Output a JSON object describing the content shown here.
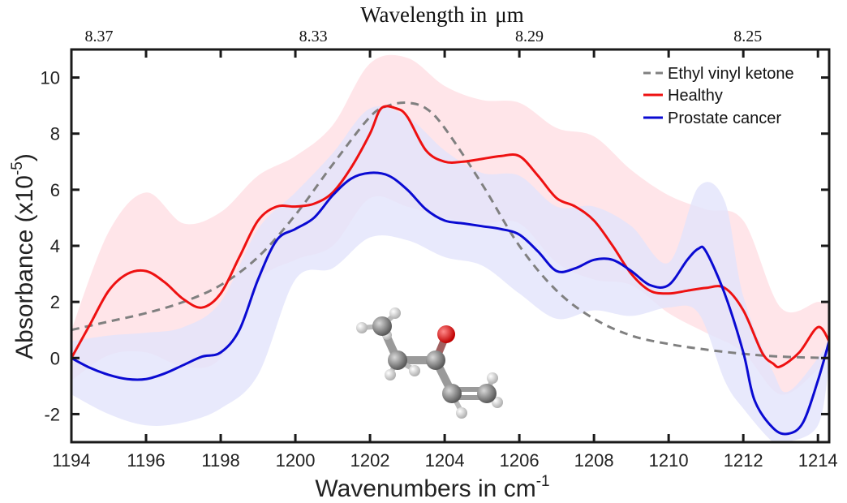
{
  "chart_data": {
    "type": "line",
    "xlabel": "Wavenumbers in cm",
    "xlabel_sup": "-1",
    "ylabel": "Absorbance (x10",
    "ylabel_sup": "-5",
    "ylabel_close": ")",
    "top_axis_label": "Wavelength in",
    "top_axis_unit": "μm",
    "xlim": [
      1194,
      1214.3
    ],
    "ylim": [
      -3,
      11
    ],
    "x_ticks": [
      1194,
      1196,
      1198,
      1200,
      1202,
      1204,
      1206,
      1208,
      1210,
      1212,
      1214
    ],
    "x_tick_labels": [
      "1194",
      "1196",
      "1198",
      "1200",
      "1202",
      "1204",
      "1206",
      "1208",
      "1210",
      "1212",
      "1214"
    ],
    "y_ticks": [
      -2,
      0,
      2,
      4,
      6,
      8,
      10
    ],
    "y_tick_labels": [
      "-2",
      "0",
      "2",
      "4",
      "6",
      "8",
      "10"
    ],
    "top_ticks": [
      {
        "label": "8.37",
        "wavenumber": 1194.74
      },
      {
        "label": "8.33",
        "wavenumber": 1200.48
      },
      {
        "label": "8.29",
        "wavenumber": 1206.27
      },
      {
        "label": "8.25",
        "wavenumber": 1212.12
      }
    ],
    "legend_position": "top-right",
    "series": [
      {
        "name": "Ethyl vinyl ketone",
        "color": "#808080",
        "style": "dashed",
        "x": [
          1194,
          1195,
          1196,
          1197,
          1198,
          1199,
          1200,
          1201,
          1202,
          1202.5,
          1203,
          1203.5,
          1204,
          1205,
          1206,
          1207,
          1208,
          1209,
          1210,
          1211,
          1212,
          1213,
          1214.3
        ],
        "values": [
          1.0,
          1.3,
          1.6,
          2.0,
          2.6,
          3.6,
          5.1,
          6.9,
          8.6,
          9.0,
          9.1,
          8.9,
          8.2,
          6.2,
          4.0,
          2.4,
          1.4,
          0.8,
          0.5,
          0.3,
          0.15,
          0.05,
          0.0
        ]
      },
      {
        "name": "Healthy",
        "color": "#ee1111",
        "style": "solid",
        "x": [
          1194,
          1194.5,
          1195,
          1195.5,
          1196,
          1196.5,
          1197,
          1197.5,
          1198,
          1198.5,
          1199,
          1199.5,
          1200,
          1200.5,
          1201,
          1201.5,
          1202,
          1202.3,
          1202.7,
          1203,
          1203.5,
          1204,
          1204.5,
          1205,
          1205.5,
          1206,
          1206.5,
          1207,
          1207.5,
          1208,
          1208.5,
          1209,
          1209.5,
          1210,
          1210.5,
          1211,
          1211.5,
          1212,
          1212.5,
          1212.8,
          1213,
          1213.5,
          1214,
          1214.3
        ],
        "values": [
          0.0,
          1.2,
          2.4,
          3.0,
          3.1,
          2.7,
          2.1,
          1.8,
          2.3,
          3.6,
          4.9,
          5.4,
          5.4,
          5.5,
          5.9,
          6.8,
          8.0,
          8.9,
          8.9,
          8.6,
          7.4,
          7.0,
          7.0,
          7.1,
          7.2,
          7.2,
          6.5,
          5.7,
          5.4,
          4.9,
          4.0,
          3.0,
          2.4,
          2.3,
          2.4,
          2.5,
          2.5,
          1.7,
          0.2,
          -0.2,
          -0.3,
          0.2,
          1.1,
          0.6
        ]
      },
      {
        "name": "Prostate cancer",
        "color": "#0a0ad2",
        "style": "solid",
        "x": [
          1194,
          1194.5,
          1195,
          1195.5,
          1196,
          1196.5,
          1197,
          1197.5,
          1198,
          1198.5,
          1199,
          1199.5,
          1200,
          1200.5,
          1201,
          1201.5,
          1202,
          1202.5,
          1203,
          1203.5,
          1204,
          1204.5,
          1205,
          1205.5,
          1206,
          1206.5,
          1207,
          1207.5,
          1208,
          1208.5,
          1209,
          1209.5,
          1210,
          1210.5,
          1210.8,
          1211,
          1211.5,
          1212,
          1212.3,
          1212.8,
          1213.2,
          1213.6,
          1214,
          1214.3
        ],
        "values": [
          0.0,
          -0.35,
          -0.6,
          -0.75,
          -0.75,
          -0.55,
          -0.25,
          0.05,
          0.2,
          1.0,
          2.8,
          4.2,
          4.6,
          5.0,
          5.8,
          6.4,
          6.6,
          6.5,
          6.0,
          5.3,
          4.9,
          4.8,
          4.7,
          4.6,
          4.4,
          3.8,
          3.1,
          3.2,
          3.5,
          3.5,
          3.1,
          2.6,
          2.6,
          3.5,
          3.9,
          3.8,
          2.3,
          0.2,
          -1.5,
          -2.5,
          -2.7,
          -2.3,
          -0.8,
          0.6
        ]
      }
    ],
    "bands": [
      {
        "name": "Healthy spread",
        "color": "#ffdfe4",
        "x": [
          1194,
          1195,
          1196,
          1197,
          1198,
          1199,
          1200,
          1201,
          1202,
          1203,
          1204,
          1205,
          1206,
          1207,
          1208,
          1209,
          1210,
          1211,
          1212,
          1213,
          1214,
          1214.3
        ],
        "upper": [
          1.0,
          4.5,
          5.9,
          4.8,
          5.2,
          6.5,
          7.2,
          8.3,
          10.5,
          10.7,
          9.7,
          9.2,
          9.1,
          8.2,
          7.9,
          6.7,
          5.8,
          5.3,
          4.9,
          1.8,
          2.0,
          1.9
        ],
        "lower": [
          -0.8,
          0.1,
          0.2,
          -0.3,
          0.0,
          2.7,
          3.5,
          4.0,
          5.7,
          5.4,
          5.0,
          4.8,
          4.8,
          3.4,
          2.8,
          2.6,
          1.6,
          0.9,
          0.2,
          -1.3,
          -0.4,
          0.1
        ]
      },
      {
        "name": "Prostate cancer spread",
        "color": "#e2e4fb",
        "x": [
          1194,
          1195,
          1196,
          1197,
          1198,
          1199,
          1200,
          1201,
          1202,
          1203,
          1204,
          1205,
          1206,
          1207,
          1208,
          1209,
          1210,
          1210.8,
          1211.5,
          1212,
          1212.8,
          1213.2,
          1214,
          1214.3
        ],
        "upper": [
          0.6,
          0.8,
          0.9,
          1.1,
          2.0,
          4.6,
          5.9,
          7.3,
          8.9,
          8.6,
          7.4,
          6.6,
          6.5,
          5.4,
          5.4,
          4.7,
          3.4,
          6.1,
          5.6,
          2.2,
          -0.5,
          -1.2,
          0.0,
          0.7
        ],
        "lower": [
          -1.3,
          -2.0,
          -2.4,
          -2.3,
          -1.8,
          -0.6,
          2.8,
          3.2,
          4.3,
          4.2,
          3.6,
          3.3,
          2.3,
          1.4,
          1.7,
          1.5,
          1.8,
          1.6,
          -0.8,
          -1.8,
          -3.0,
          -3.0,
          -2.4,
          -0.2
        ]
      }
    ]
  }
}
